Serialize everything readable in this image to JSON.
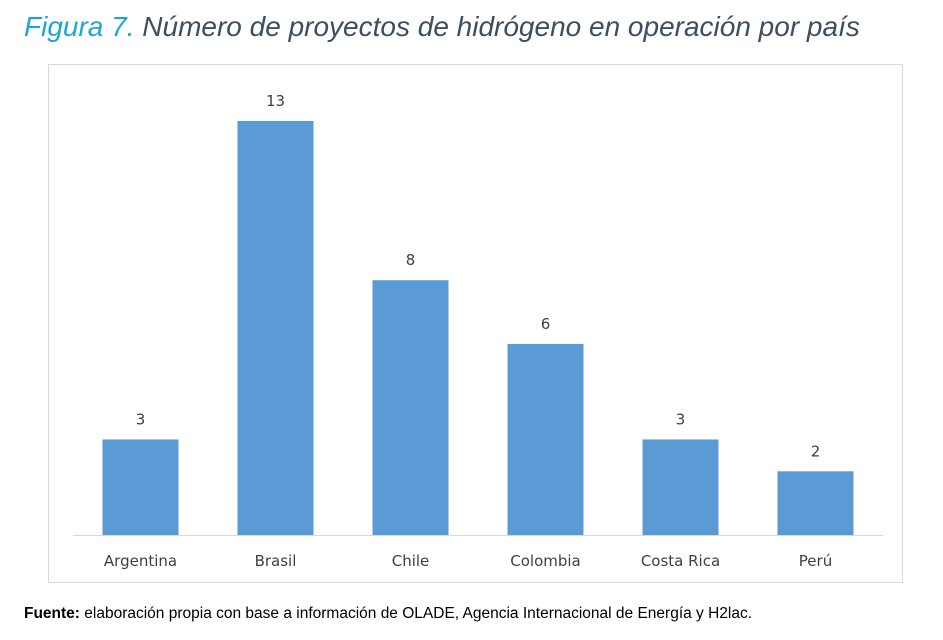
{
  "figure": {
    "number_label": "Figura 7.",
    "title": "Número de proyectos de hidrógeno en operación por país"
  },
  "source": {
    "label": "Fuente:",
    "text": "elaboración propia con base a información de OLADE, Agencia Internacional de Energía y H2lac."
  },
  "colors": {
    "bar": "#5b9bd5",
    "figure_number": "#1ea5d8",
    "title": "#3b4e62"
  },
  "chart_data": {
    "type": "bar",
    "categories": [
      "Argentina",
      "Brasil",
      "Chile",
      "Colombia",
      "Costa Rica",
      "Perú"
    ],
    "values": [
      3,
      13,
      8,
      6,
      3,
      2
    ],
    "ylim": [
      0,
      13
    ],
    "grid": false,
    "data_labels": true,
    "legend": false
  }
}
